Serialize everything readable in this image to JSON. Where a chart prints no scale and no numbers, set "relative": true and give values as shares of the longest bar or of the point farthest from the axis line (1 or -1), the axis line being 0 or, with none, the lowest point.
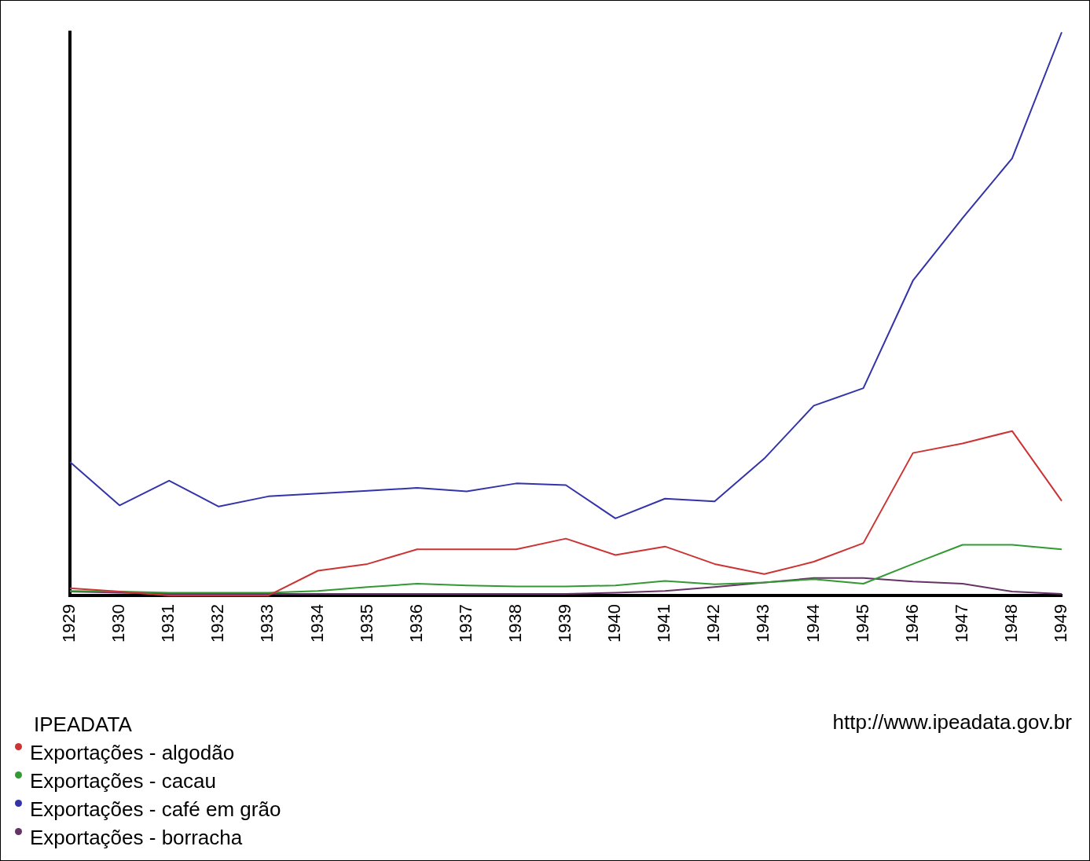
{
  "chart_data": {
    "type": "line",
    "relative": true,
    "categories": [
      "1929",
      "1930",
      "1931",
      "1932",
      "1933",
      "1934",
      "1935",
      "1936",
      "1937",
      "1938",
      "1939",
      "1940",
      "1941",
      "1942",
      "1943",
      "1944",
      "1945",
      "1946",
      "1947",
      "1948",
      "1949"
    ],
    "series": [
      {
        "name": "Exportações - algodão",
        "color": "#cc3333",
        "values": [
          0.013,
          0.007,
          0,
          0,
          0,
          0.044,
          0.056,
          0.082,
          0.082,
          0.082,
          0.101,
          0.072,
          0.087,
          0.056,
          0.038,
          0.06,
          0.093,
          0.253,
          0.27,
          0.292,
          0.168
        ]
      },
      {
        "name": "Exportações - cacau",
        "color": "#339933",
        "values": [
          0.008,
          0.007,
          0.005,
          0.005,
          0.005,
          0.008,
          0.015,
          0.021,
          0.018,
          0.016,
          0.016,
          0.018,
          0.026,
          0.02,
          0.023,
          0.029,
          0.021,
          0.056,
          0.09,
          0.09,
          0.082
        ]
      },
      {
        "name": "Exportações - café em grão",
        "color": "#3333aa",
        "values": [
          0.237,
          0.16,
          0.204,
          0.158,
          0.176,
          0.181,
          0.186,
          0.191,
          0.185,
          0.199,
          0.196,
          0.137,
          0.172,
          0.167,
          0.243,
          0.337,
          0.368,
          0.559,
          0.67,
          0.776,
          1
        ]
      },
      {
        "name": "Exportações - borracha",
        "color": "#663366",
        "values": [
          0.007,
          0.005,
          0.003,
          0.003,
          0.003,
          0.003,
          0.003,
          0.003,
          0.003,
          0.003,
          0.003,
          0.005,
          0.008,
          0.015,
          0.023,
          0.031,
          0.031,
          0.025,
          0.021,
          0.007,
          0.003
        ]
      }
    ],
    "legend": "bottom left",
    "legend_title": "IPEADATA",
    "grid": false,
    "marker": "none",
    "line_style": "solid",
    "annotations": [
      "http://www.ipeadata.gov.br"
    ]
  }
}
